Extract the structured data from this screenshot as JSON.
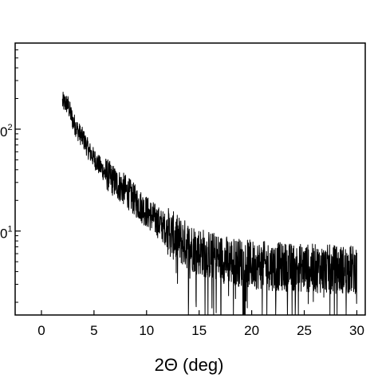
{
  "chart_data": {
    "type": "line",
    "title": "",
    "xlabel": "2Θ (deg)",
    "ylabel": "",
    "yscale": "log",
    "xlim": [
      -2.5,
      30.8
    ],
    "ylim": [
      1.5,
      700
    ],
    "grid": false,
    "x_ticks": [
      0,
      5,
      10,
      15,
      20,
      25,
      30
    ],
    "x_tick_labels": [
      "0",
      "5",
      "10",
      "15",
      "20",
      "25",
      "30"
    ],
    "y_ticks": [
      10,
      100
    ],
    "y_tick_labels": [
      {
        "base": "0",
        "exp": "1"
      },
      {
        "base": "0",
        "exp": "2"
      }
    ],
    "series": [
      {
        "color": "#000000",
        "x": [
          2.0,
          2.5,
          3.0,
          3.5,
          4.0,
          4.5,
          5.0,
          5.5,
          6.0,
          7.0,
          8.0,
          9.0,
          10.0,
          11.0,
          12.0,
          13.0,
          14.0,
          15.0,
          16.0,
          17.0,
          18.0,
          19.0,
          20.0,
          22.0,
          24.0,
          26.0,
          28.0,
          30.0
        ],
        "y": [
          185,
          175,
          120,
          95,
          80,
          62,
          52,
          44,
          38,
          30,
          25,
          19.5,
          15.5,
          12.5,
          10,
          8.2,
          7.2,
          6.4,
          5.8,
          5.4,
          5.1,
          4.9,
          4.7,
          4.5,
          4.4,
          4.3,
          4.2,
          4.2
        ]
      }
    ]
  }
}
